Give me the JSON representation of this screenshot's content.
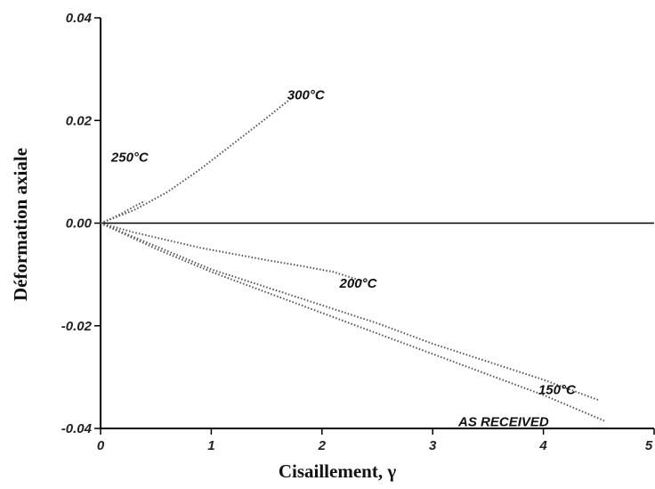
{
  "chart_data": {
    "type": "line",
    "xlabel": "Cisaillement, γ",
    "ylabel": "Déformation axiale",
    "xlim": [
      0,
      5
    ],
    "ylim": [
      -0.04,
      0.04
    ],
    "xticks": [
      "0",
      "1",
      "2",
      "3",
      "4",
      "5"
    ],
    "yticks": [
      "0.04",
      "0.02",
      "0.00",
      "-0.02",
      "-0.04"
    ],
    "grid": false,
    "legend": "none",
    "reference_line": {
      "y": 0.0
    },
    "series": [
      {
        "name": "300°C",
        "x": [
          0,
          0.3,
          0.6,
          0.9,
          1.2,
          1.5,
          1.75
        ],
        "y": [
          0,
          0.0025,
          0.006,
          0.0105,
          0.0155,
          0.0205,
          0.0248
        ]
      },
      {
        "name": "250°C",
        "x": [
          0,
          0.1,
          0.2,
          0.3,
          0.4
        ],
        "y": [
          0,
          0.0009,
          0.002,
          0.0032,
          0.0043
        ]
      },
      {
        "name": "200°C",
        "x": [
          0,
          0.3,
          0.6,
          0.9,
          1.2,
          1.5,
          1.8,
          2.1,
          2.4
        ],
        "y": [
          0,
          -0.0018,
          -0.0033,
          -0.0048,
          -0.006,
          -0.0072,
          -0.0083,
          -0.0095,
          -0.0115
        ]
      },
      {
        "name": "150°C",
        "x": [
          0,
          0.5,
          1.0,
          1.5,
          2.0,
          2.5,
          3.0,
          3.5,
          4.0,
          4.5
        ],
        "y": [
          0,
          -0.0045,
          -0.009,
          -0.0125,
          -0.016,
          -0.0195,
          -0.0235,
          -0.027,
          -0.0305,
          -0.0345
        ]
      },
      {
        "name": "AS RECEIVED",
        "x": [
          0,
          0.5,
          1.0,
          1.5,
          2.0,
          2.5,
          3.0,
          3.5,
          4.0,
          4.55
        ],
        "y": [
          0,
          -0.005,
          -0.0095,
          -0.0135,
          -0.0175,
          -0.0215,
          -0.0255,
          -0.0295,
          -0.0335,
          -0.0385
        ]
      }
    ]
  }
}
